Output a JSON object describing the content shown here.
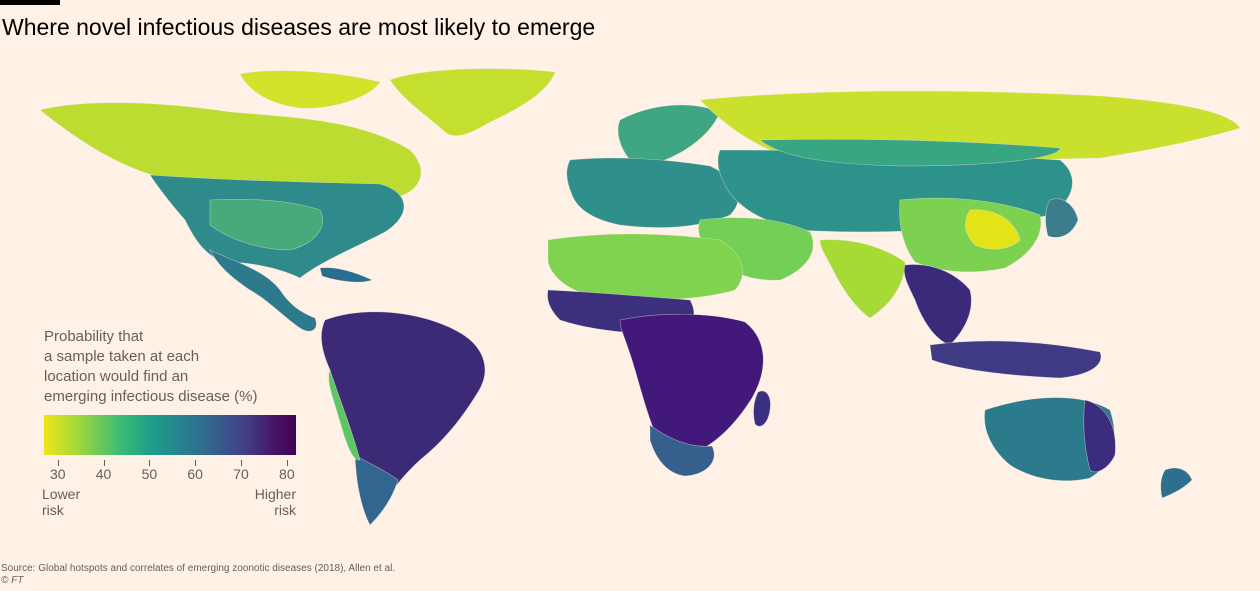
{
  "title": "Where novel infectious diseases are most likely to emerge",
  "legend": {
    "title_lines": [
      "Probability that",
      "a sample taken at each",
      "location would find an",
      "emerging infectious disease (%)"
    ],
    "ticks": [
      "30",
      "40",
      "50",
      "60",
      "70",
      "80"
    ],
    "low_label_lines": [
      "Lower",
      "risk"
    ],
    "high_label_lines": [
      "Higher",
      "risk"
    ],
    "range": [
      27,
      82
    ],
    "colors": [
      "#f1e51d",
      "#a8db34",
      "#3dbc74",
      "#1f9e89",
      "#26828e",
      "#355f8d",
      "#433e85",
      "#471365",
      "#440154"
    ]
  },
  "source": "Source: Global hotspots and correlates of emerging zoonotic diseases (2018), Allen et al.",
  "copyright": "© FT"
}
